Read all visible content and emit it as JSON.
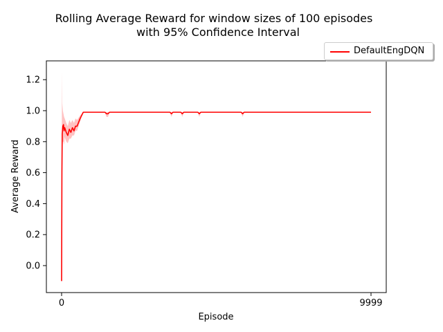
{
  "chart_data": {
    "type": "line",
    "title": "Rolling Average Reward for window sizes of 100 episodes",
    "subtitle": "with 95% Confidence Interval",
    "xlabel": "Episode",
    "ylabel": "Average Reward",
    "xlim": [
      0,
      9999
    ],
    "ylim": [
      -0.1,
      1.3
    ],
    "x_ticks": [
      0,
      9999
    ],
    "x_tick_labels": [
      "0",
      "9999"
    ],
    "y_ticks": [
      0.0,
      0.2,
      0.4,
      0.6,
      0.8,
      1.0,
      1.2
    ],
    "y_tick_labels": [
      "0.0",
      "0.2",
      "0.4",
      "0.6",
      "0.8",
      "1.0",
      "1.2"
    ],
    "grid": false,
    "legend_position": "top-right, outside plot",
    "series": [
      {
        "name": "DefaultEngDQN",
        "color": "#ff0000",
        "band_color": "#ff9999",
        "x": [
          0,
          10,
          20,
          40,
          60,
          80,
          100,
          150,
          200,
          250,
          300,
          350,
          400,
          450,
          500,
          600,
          700,
          800,
          1000,
          1400,
          1450,
          1500,
          1550,
          3500,
          3550,
          3600,
          3850,
          3900,
          3950,
          4400,
          4450,
          4500,
          5800,
          5850,
          5900,
          9999
        ],
        "y": [
          -0.1,
          0.6,
          0.85,
          0.9,
          0.91,
          0.87,
          0.89,
          0.86,
          0.84,
          0.88,
          0.86,
          0.89,
          0.87,
          0.9,
          0.9,
          0.95,
          0.99,
          0.99,
          0.99,
          0.99,
          0.98,
          0.98,
          0.99,
          0.99,
          0.98,
          0.99,
          0.99,
          0.98,
          0.99,
          0.99,
          0.98,
          0.99,
          0.99,
          0.98,
          0.99,
          0.99
        ],
        "ci_low": [
          -0.1,
          0.3,
          0.75,
          0.8,
          0.8,
          0.78,
          0.83,
          0.8,
          0.79,
          0.82,
          0.82,
          0.84,
          0.84,
          0.87,
          0.87,
          0.93,
          0.99,
          0.99,
          0.99,
          0.99,
          0.96,
          0.96,
          0.99,
          0.99,
          0.96,
          0.99,
          0.99,
          0.96,
          0.99,
          0.99,
          0.96,
          0.99,
          0.99,
          0.96,
          0.99,
          0.99
        ],
        "ci_high": [
          -0.1,
          1.25,
          1.05,
          1.0,
          0.98,
          0.96,
          0.95,
          0.92,
          0.9,
          0.94,
          0.92,
          0.94,
          0.92,
          0.95,
          0.94,
          0.97,
          0.99,
          0.99,
          0.99,
          0.99,
          0.99,
          0.99,
          0.99,
          0.99,
          0.99,
          0.99,
          0.99,
          0.99,
          0.99,
          0.99,
          0.99,
          0.99,
          0.99,
          0.99,
          0.99,
          0.99
        ]
      }
    ]
  }
}
